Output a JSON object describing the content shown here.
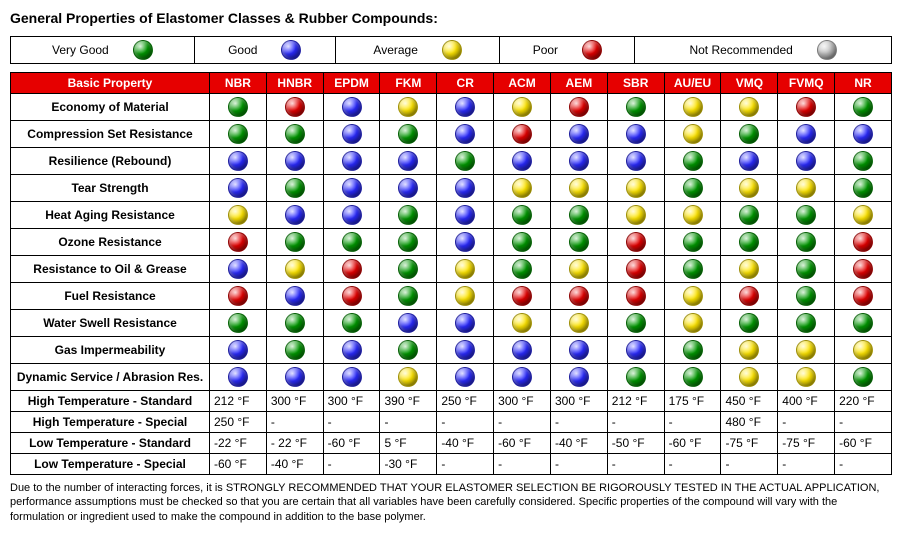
{
  "title": "General Properties of Elastomer Classes & Rubber Compounds:",
  "colors": {
    "veryGood": "#009900",
    "good": "#2a2aff",
    "average": "#ffe600",
    "poor": "#e60000",
    "notRec": "#c0c0c0",
    "headerBg": "#e60000",
    "headerFg": "#ffffff"
  },
  "legend": [
    {
      "label": "Very Good",
      "rating": "veryGood"
    },
    {
      "label": "Good",
      "rating": "good"
    },
    {
      "label": "Average",
      "rating": "average"
    },
    {
      "label": "Poor",
      "rating": "poor"
    },
    {
      "label": "Not Recommended",
      "rating": "notRec"
    }
  ],
  "header": {
    "property": "Basic Property",
    "columns": [
      "NBR",
      "HNBR",
      "EPDM",
      "FKM",
      "CR",
      "ACM",
      "AEM",
      "SBR",
      "AU/EU",
      "VMQ",
      "FVMQ",
      "NR"
    ]
  },
  "ratingRows": [
    {
      "property": "Economy of Material",
      "cells": [
        "veryGood",
        "poor",
        "good",
        "average",
        "good",
        "average",
        "poor",
        "veryGood",
        "average",
        "average",
        "poor",
        "veryGood"
      ]
    },
    {
      "property": "Compression Set Resistance",
      "cells": [
        "veryGood",
        "veryGood",
        "good",
        "veryGood",
        "good",
        "poor",
        "good",
        "good",
        "average",
        "veryGood",
        "good",
        "good"
      ]
    },
    {
      "property": "Resilience (Rebound)",
      "cells": [
        "good",
        "good",
        "good",
        "good",
        "veryGood",
        "good",
        "good",
        "good",
        "veryGood",
        "good",
        "good",
        "veryGood"
      ]
    },
    {
      "property": "Tear Strength",
      "cells": [
        "good",
        "veryGood",
        "good",
        "good",
        "good",
        "average",
        "average",
        "average",
        "veryGood",
        "average",
        "average",
        "veryGood"
      ]
    },
    {
      "property": "Heat Aging Resistance",
      "cells": [
        "average",
        "good",
        "good",
        "veryGood",
        "good",
        "veryGood",
        "veryGood",
        "average",
        "average",
        "veryGood",
        "veryGood",
        "average"
      ]
    },
    {
      "property": "Ozone Resistance",
      "cells": [
        "poor",
        "veryGood",
        "veryGood",
        "veryGood",
        "good",
        "veryGood",
        "veryGood",
        "poor",
        "veryGood",
        "veryGood",
        "veryGood",
        "poor"
      ]
    },
    {
      "property": "Resistance to Oil & Grease",
      "cells": [
        "good",
        "average",
        "poor",
        "veryGood",
        "average",
        "veryGood",
        "average",
        "poor",
        "veryGood",
        "average",
        "veryGood",
        "poor"
      ]
    },
    {
      "property": "Fuel Resistance",
      "cells": [
        "poor",
        "good",
        "poor",
        "veryGood",
        "average",
        "poor",
        "poor",
        "poor",
        "average",
        "poor",
        "veryGood",
        "poor"
      ]
    },
    {
      "property": "Water Swell Resistance",
      "cells": [
        "veryGood",
        "veryGood",
        "veryGood",
        "good",
        "good",
        "average",
        "average",
        "veryGood",
        "average",
        "veryGood",
        "veryGood",
        "veryGood"
      ]
    },
    {
      "property": "Gas Impermeability",
      "cells": [
        "good",
        "veryGood",
        "good",
        "veryGood",
        "good",
        "good",
        "good",
        "good",
        "veryGood",
        "average",
        "average",
        "average"
      ]
    },
    {
      "property": "Dynamic Service / Abrasion Res.",
      "cells": [
        "good",
        "good",
        "good",
        "average",
        "good",
        "good",
        "good",
        "veryGood",
        "veryGood",
        "average",
        "average",
        "veryGood"
      ]
    }
  ],
  "textRows": [
    {
      "property": "High Temperature - Standard",
      "cells": [
        "212 °F",
        "300 °F",
        "300 °F",
        "390 °F",
        "250 °F",
        "300 °F",
        "300 °F",
        "212 °F",
        "175 °F",
        "450 °F",
        "400 °F",
        "220 °F"
      ]
    },
    {
      "property": "High Temperature - Special",
      "cells": [
        "250 °F",
        "-",
        "-",
        "-",
        "-",
        "-",
        "-",
        "-",
        "-",
        "480 °F",
        "-",
        "-"
      ]
    },
    {
      "property": "Low Temperature - Standard",
      "cells": [
        "-22 °F",
        "- 22 °F",
        "-60 °F",
        "5 °F",
        "-40 °F",
        "-60 °F",
        "-40 °F",
        "-50 °F",
        "-60 °F",
        "-75 °F",
        "-75 °F",
        "-60 °F"
      ]
    },
    {
      "property": "Low Temperature - Special",
      "cells": [
        "-60 °F",
        "-40 °F",
        "-",
        "-30 °F",
        "-",
        "-",
        "-",
        "-",
        "-",
        "-",
        "-",
        "-"
      ]
    }
  ],
  "footer": "Due to the number of interacting forces, it is STRONGLY RECOMMENDED THAT YOUR ELASTOMER SELECTION BE RIGOROUSLY TESTED IN THE ACTUAL APPLICATION, performance assumptions must be checked so that you are certain that all variables have been carefully considered. Specific properties of the compound will vary with the formulation or ingredient used to make the compound in addition to the base polymer."
}
